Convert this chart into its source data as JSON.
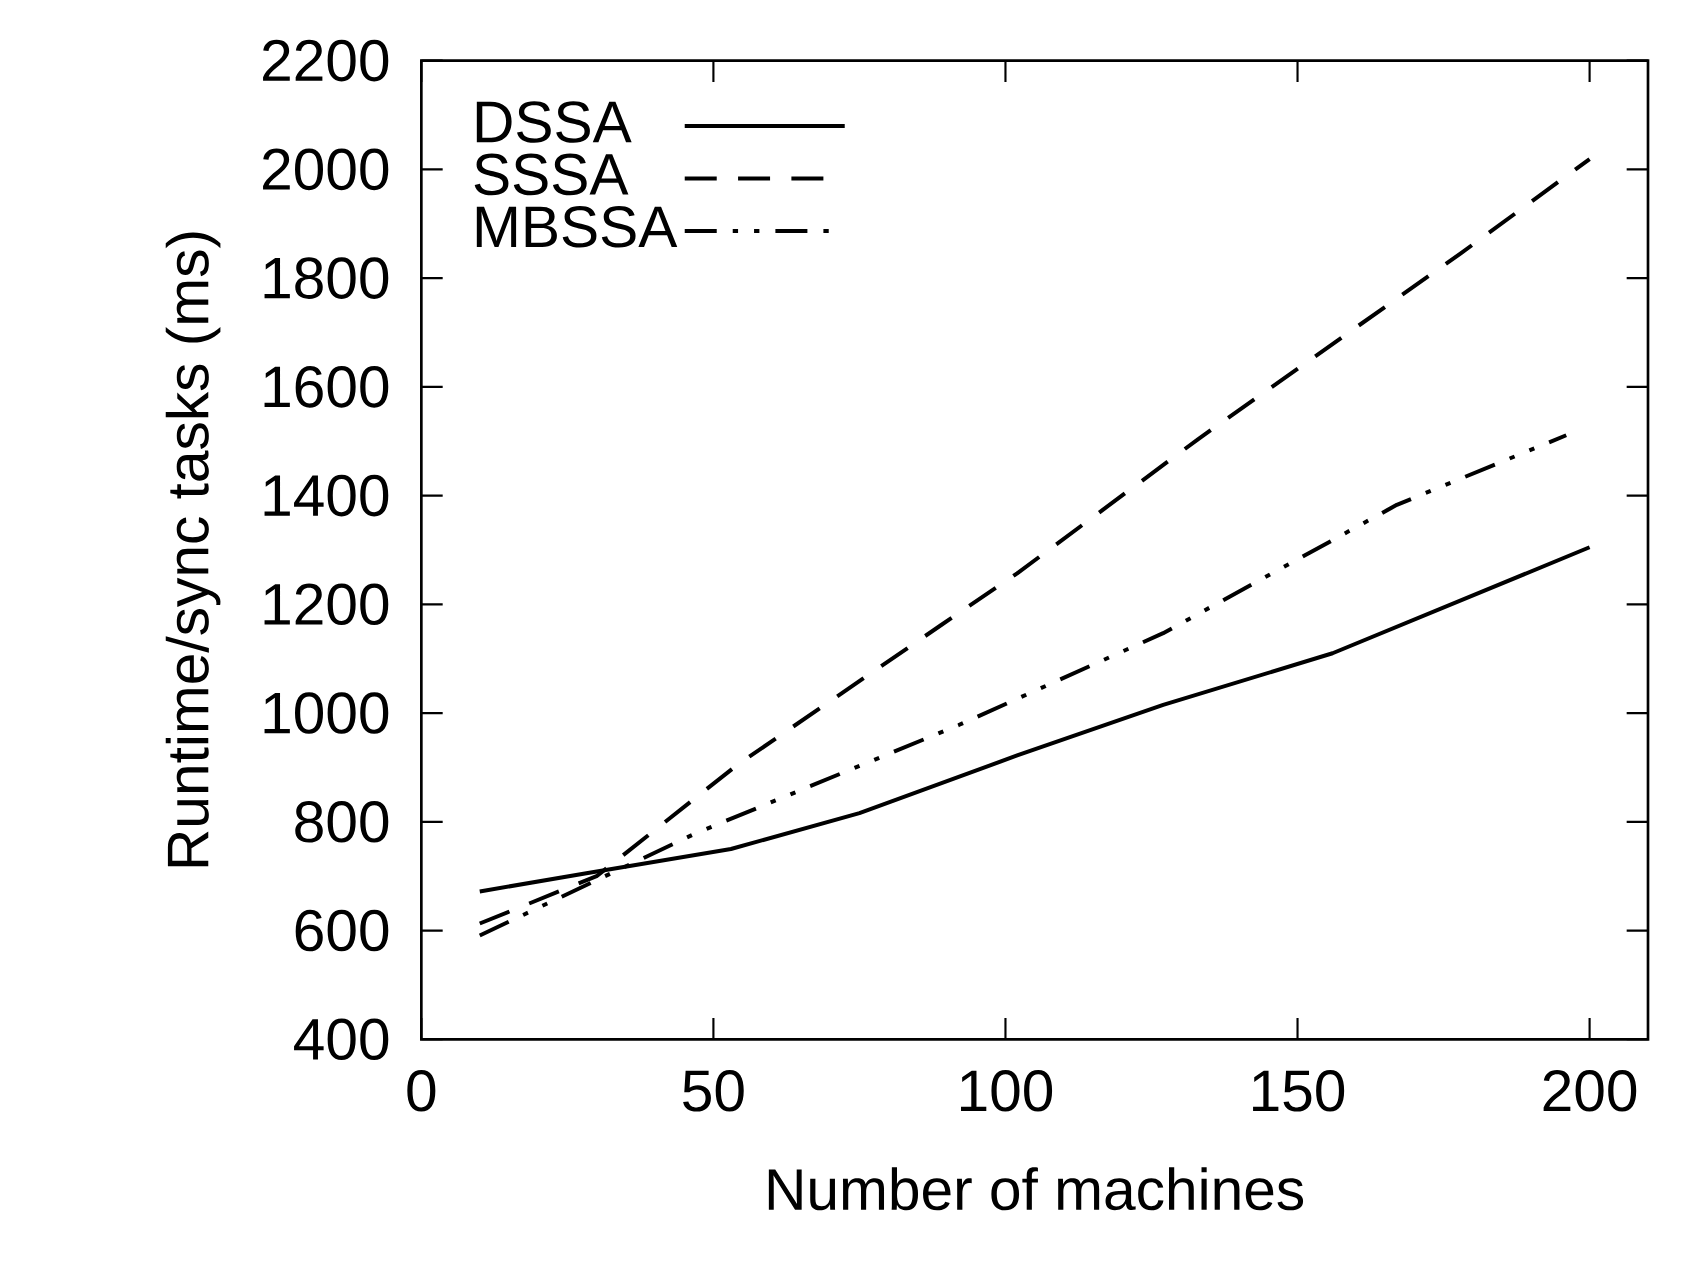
{
  "chart_data": {
    "type": "line",
    "xlabel": "Number of machines",
    "ylabel": "Runtime/sync tasks (ms)",
    "xlim": [
      0,
      210
    ],
    "xticks": [
      0,
      50,
      100,
      150,
      200
    ],
    "ylim": [
      400,
      2200
    ],
    "yticks": [
      400,
      600,
      800,
      1000,
      1200,
      1400,
      1600,
      1800,
      2000,
      2200
    ],
    "grid": false,
    "legend": "top left",
    "marker": "none",
    "series": [
      {
        "name": "DSSA",
        "color": "#000000",
        "line_style": "solid",
        "x": [
          10,
          28,
          53,
          75,
          102,
          127,
          156,
          200
        ],
        "values": [
          672,
          705,
          750,
          816,
          922,
          1015,
          1110,
          1305
        ]
      },
      {
        "name": "SSSA",
        "color": "#000000",
        "line_style": "dashed",
        "x": [
          10,
          30,
          54,
          89,
          102,
          133,
          178,
          200
        ],
        "values": [
          613,
          700,
          904,
          1162,
          1257,
          1504,
          1846,
          2019
        ]
      },
      {
        "name": "MBSSA",
        "color": "#000000",
        "line_style": "dashdotdotted",
        "x": [
          10,
          47,
          92,
          127,
          167,
          196
        ],
        "values": [
          591,
          779,
          978,
          1147,
          1383,
          1511
        ]
      }
    ]
  }
}
